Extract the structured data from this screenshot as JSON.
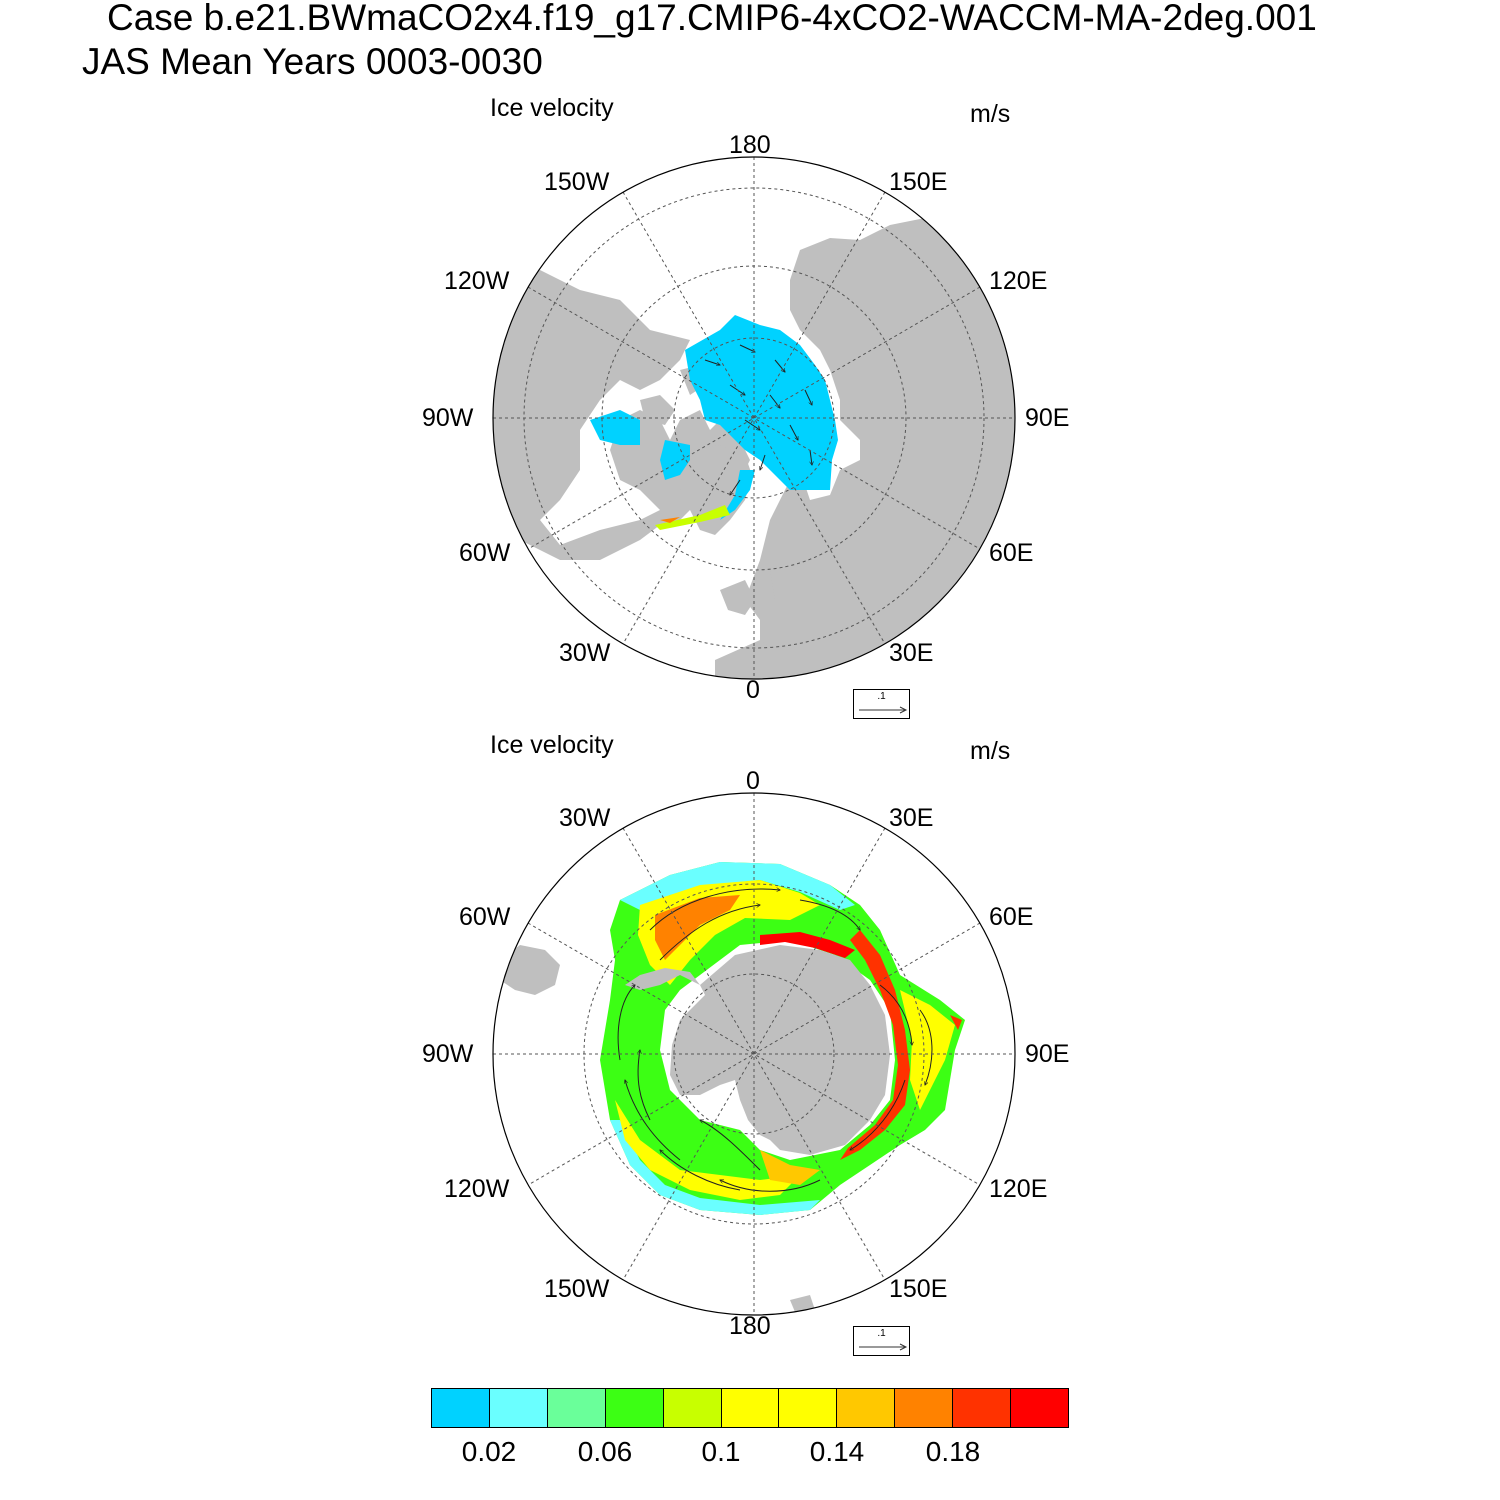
{
  "title": {
    "line1": "Case b.e21.BWmaCO2x4.f19_g17.CMIP6-4xCO2-WACCM-MA-2deg.001",
    "line2": "JAS Mean   Years 0003-0030"
  },
  "panels": [
    {
      "hemisphere": "north",
      "left_label": "Ice velocity",
      "right_label": "m/s",
      "longitude_labels": {
        "top": "180",
        "top_right": "150E",
        "upper_right": "120E",
        "right": "90E",
        "lower_right": "60E",
        "bottom_right": "30E",
        "bottom": "0",
        "bottom_left": "30W",
        "lower_left": "60W",
        "left": "90W",
        "upper_left": "120W",
        "top_left": "150W"
      },
      "reference_vector": ".1"
    },
    {
      "hemisphere": "south",
      "left_label": "Ice velocity",
      "right_label": "m/s",
      "longitude_labels": {
        "top": "0",
        "top_right": "30E",
        "upper_right": "60E",
        "right": "90E",
        "lower_right": "120E",
        "bottom_right": "150E",
        "bottom": "180",
        "bottom_left": "150W",
        "lower_left": "120W",
        "left": "90W",
        "upper_left": "60W",
        "top_left": "30W"
      },
      "reference_vector": ".1"
    }
  ],
  "colorbar": {
    "colors": [
      "#00d2ff",
      "#6affff",
      "#6aff9a",
      "#3cff14",
      "#c8ff00",
      "#ffff00",
      "#ffff00",
      "#ffc800",
      "#ff8200",
      "#ff3200",
      "#ff0000"
    ],
    "labels": [
      "0.02",
      "0.06",
      "0.1",
      "0.14",
      "0.18"
    ]
  },
  "colors": {
    "land": "#bfbfbf",
    "ice_low": "#00d2ff",
    "ice_high": "#ff0000"
  }
}
